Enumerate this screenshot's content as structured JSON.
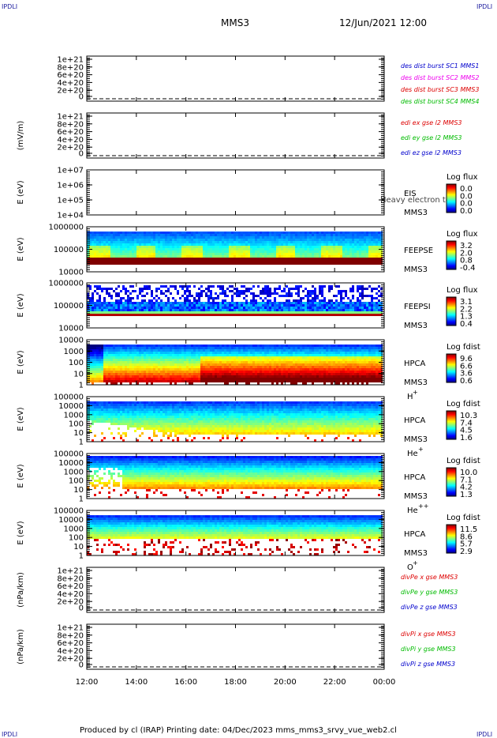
{
  "header": {
    "corner_tl": "IPDLI",
    "corner_tr": "IPDLI",
    "corner_bl": "IPDLI",
    "corner_br": "IPDLI",
    "spacecraft": "MMS3",
    "datetime": "12/Jun/2021 12:00"
  },
  "footer": {
    "text": "Produced by cl (IRAP)    Printing date: 04/Dec/2023    mms_mms3_srvy_vue_web2.cl"
  },
  "chart_data": {
    "type": "multi-panel time series",
    "time_axis": {
      "start": "12:00",
      "end": "00:00",
      "ticks": [
        "12:00",
        "14:00",
        "16:00",
        "18:00",
        "20:00",
        "22:00",
        "00:00"
      ]
    },
    "panels": [
      {
        "id": "fpi-des",
        "type": "line",
        "ylabel": "",
        "yticks": [
          "1e+21",
          "8e+20",
          "6e+20",
          "4e+20",
          "2e+20",
          "0"
        ],
        "ylim": [
          0,
          1e+21
        ],
        "legend": [
          {
            "label": "des dist burst SC1 MMS1",
            "color": "#0000cc"
          },
          {
            "label": "des dist burst SC2 MMS2",
            "color": "#ee00ee"
          },
          {
            "label": "des dist burst SC3 MMS3",
            "color": "#dd0000"
          },
          {
            "label": "des dist burst SC4 MMS4",
            "color": "#00bb00"
          }
        ],
        "series_value": 0
      },
      {
        "id": "edi",
        "type": "line",
        "ylabel": "(mV/m)",
        "yticks": [
          "1e+21",
          "8e+20",
          "6e+20",
          "4e+20",
          "2e+20",
          "0"
        ],
        "ylim": [
          0,
          1e+21
        ],
        "legend": [
          {
            "label": "edi ex gse l2 MMS3",
            "color": "#dd0000"
          },
          {
            "label": "edi ey gse l2 MMS3",
            "color": "#00bb00"
          },
          {
            "label": "edi ez gse l2 MMS3",
            "color": "#0000cc"
          }
        ],
        "series_value": 0
      },
      {
        "id": "eis",
        "type": "heatmap",
        "ylabel": "E (eV)",
        "yticks": [
          "1e+07",
          "1e+06",
          "1e+05",
          "1e+04"
        ],
        "label1": "EIS",
        "label2": "MMS3",
        "overlay_text": "Heavy electron to",
        "cbar_title": "Log flux",
        "cbar_ticks": [
          "0.0",
          "0.0",
          "0.0",
          "0.0"
        ],
        "empty": true
      },
      {
        "id": "feepse",
        "type": "heatmap",
        "ylabel": "E (eV)",
        "yticks": [
          "1000000",
          "100000",
          "10000"
        ],
        "label1": "FEEPSE",
        "label2": "MMS3",
        "cbar_title": "Log flux",
        "cbar_ticks": [
          "3.2",
          "2.0",
          "0.8",
          "-0.4"
        ]
      },
      {
        "id": "feepsi",
        "type": "heatmap",
        "ylabel": "E (eV)",
        "yticks": [
          "1000000",
          "100000",
          "10000"
        ],
        "label1": "FEEPSI",
        "label2": "MMS3",
        "cbar_title": "Log flux",
        "cbar_ticks": [
          "3.1",
          "2.2",
          "1.3",
          "0.4"
        ]
      },
      {
        "id": "hpca-h",
        "type": "heatmap",
        "ylabel": "E (eV)",
        "yticks": [
          "10000",
          "1000",
          "100",
          "10",
          "1"
        ],
        "label1": "HPCA",
        "label2": "MMS3",
        "species": "H",
        "species_sup": "+",
        "cbar_title": "Log fdist",
        "cbar_ticks": [
          "9.6",
          "6.6",
          "3.6",
          "0.6"
        ]
      },
      {
        "id": "hpca-he",
        "type": "heatmap",
        "ylabel": "E (eV)",
        "yticks": [
          "100000",
          "10000",
          "1000",
          "100",
          "10",
          "1"
        ],
        "label1": "HPCA",
        "label2": "MMS3",
        "species": "He",
        "species_sup": "+",
        "cbar_title": "Log fdist",
        "cbar_ticks": [
          "10.3",
          "7.4",
          "4.5",
          "1.6"
        ]
      },
      {
        "id": "hpca-he2",
        "type": "heatmap",
        "ylabel": "E (eV)",
        "yticks": [
          "100000",
          "10000",
          "1000",
          "100",
          "10",
          "1"
        ],
        "label1": "HPCA",
        "label2": "MMS3",
        "species": "He",
        "species_sup": "++",
        "cbar_title": "Log fdist",
        "cbar_ticks": [
          "10.0",
          "7.1",
          "4.2",
          "1.3"
        ]
      },
      {
        "id": "hpca-o",
        "type": "heatmap",
        "ylabel": "E (eV)",
        "yticks": [
          "100000",
          "10000",
          "1000",
          "100",
          "10",
          "1"
        ],
        "label1": "HPCA",
        "label2": "MMS3",
        "species": "O",
        "species_sup": "+",
        "cbar_title": "Log fdist",
        "cbar_ticks": [
          "11.5",
          "8.6",
          "5.7",
          "2.9"
        ]
      },
      {
        "id": "divpe",
        "type": "line",
        "ylabel": "(nPa/km)",
        "yticks": [
          "1e+21",
          "8e+20",
          "6e+20",
          "4e+20",
          "2e+20",
          "0"
        ],
        "ylim": [
          0,
          1e+21
        ],
        "legend": [
          {
            "label": "divPe x gse MMS3",
            "color": "#dd0000"
          },
          {
            "label": "divPe y gse MMS3",
            "color": "#00bb00"
          },
          {
            "label": "divPe z gse MMS3",
            "color": "#0000cc"
          }
        ],
        "series_value": 0
      },
      {
        "id": "divpi",
        "type": "line",
        "ylabel": "(nPa/km)",
        "yticks": [
          "1e+21",
          "8e+20",
          "6e+20",
          "4e+20",
          "2e+20",
          "0"
        ],
        "ylim": [
          0,
          1e+21
        ],
        "legend": [
          {
            "label": "divPi x gse MMS3",
            "color": "#dd0000"
          },
          {
            "label": "divPi y gse MMS3",
            "color": "#00bb00"
          },
          {
            "label": "divPi z gse MMS3",
            "color": "#0000cc"
          }
        ],
        "series_value": 0
      }
    ]
  }
}
